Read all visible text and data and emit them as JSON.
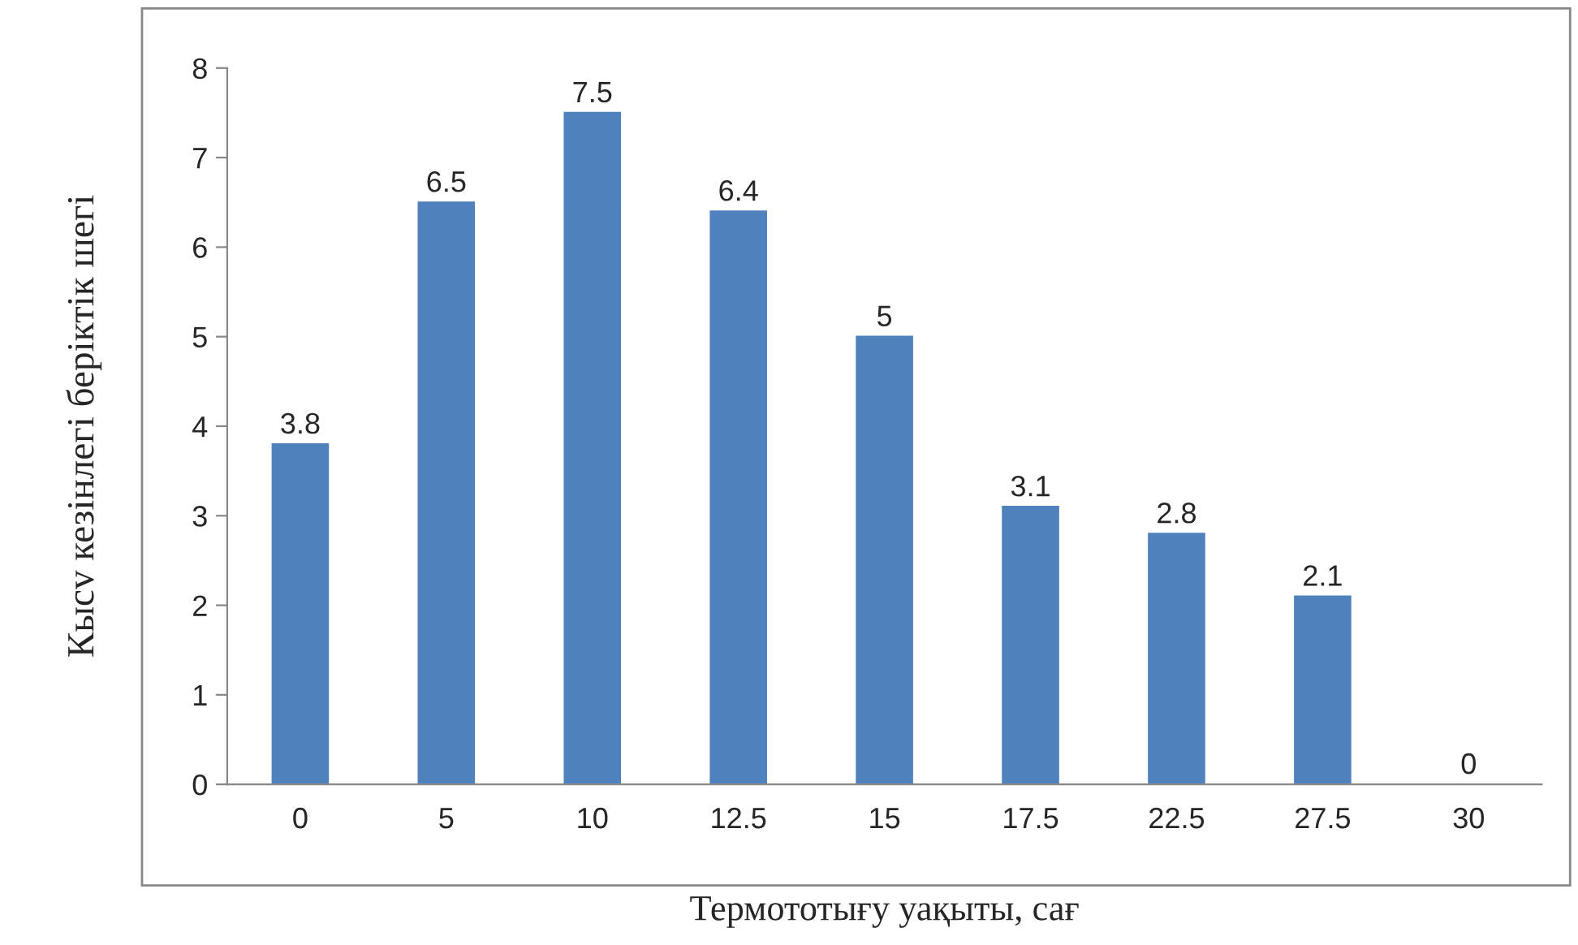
{
  "chart_data": {
    "type": "bar",
    "xlabel": "Термототығу уақыты, сағ",
    "ylabel": "Кысv кезінлегі беріктік шегі",
    "categories": [
      "0",
      "5",
      "10",
      "12.5",
      "15",
      "17.5",
      "22.5",
      "27.5",
      "30"
    ],
    "values": [
      3.8,
      6.5,
      7.5,
      6.4,
      5,
      3.1,
      2.8,
      2.1,
      0
    ],
    "color": "#4f81bd",
    "ylim": [
      0,
      8
    ],
    "yticks": [
      0,
      1,
      2,
      3,
      4,
      5,
      6,
      7,
      8
    ],
    "grid": false,
    "data_labels": true
  }
}
